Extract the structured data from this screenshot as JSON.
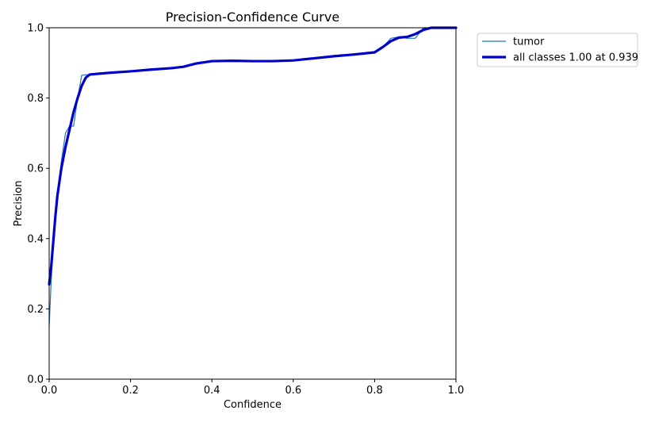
{
  "chart_data": {
    "type": "line",
    "title": "Precision-Confidence Curve",
    "xlabel": "Confidence",
    "ylabel": "Precision",
    "xlim": [
      0,
      1
    ],
    "ylim": [
      0,
      1
    ],
    "x_ticks": [
      0.0,
      0.2,
      0.4,
      0.6,
      0.8,
      1.0
    ],
    "y_ticks": [
      0.0,
      0.2,
      0.4,
      0.6,
      0.8,
      1.0
    ],
    "x_tick_labels": [
      "0.0",
      "0.2",
      "0.4",
      "0.6",
      "0.8",
      "1.0"
    ],
    "y_tick_labels": [
      "0.0",
      "0.2",
      "0.4",
      "0.6",
      "0.8",
      "1.0"
    ],
    "grid": false,
    "legend_position": "outside-top-right",
    "series": [
      {
        "name": "tumor",
        "color": "#1f77b4",
        "points": [
          [
            0.0,
            0.15
          ],
          [
            0.005,
            0.28
          ],
          [
            0.01,
            0.38
          ],
          [
            0.015,
            0.47
          ],
          [
            0.02,
            0.53
          ],
          [
            0.03,
            0.62
          ],
          [
            0.04,
            0.7
          ],
          [
            0.05,
            0.72
          ],
          [
            0.06,
            0.72
          ],
          [
            0.065,
            0.76
          ],
          [
            0.07,
            0.8
          ],
          [
            0.08,
            0.865
          ],
          [
            0.09,
            0.866
          ],
          [
            0.1,
            0.867
          ],
          [
            0.15,
            0.872
          ],
          [
            0.2,
            0.876
          ],
          [
            0.25,
            0.881
          ],
          [
            0.3,
            0.885
          ],
          [
            0.33,
            0.888
          ],
          [
            0.36,
            0.897
          ],
          [
            0.4,
            0.905
          ],
          [
            0.45,
            0.906
          ],
          [
            0.5,
            0.905
          ],
          [
            0.55,
            0.905
          ],
          [
            0.6,
            0.907
          ],
          [
            0.65,
            0.913
          ],
          [
            0.7,
            0.919
          ],
          [
            0.75,
            0.924
          ],
          [
            0.8,
            0.93
          ],
          [
            0.82,
            0.945
          ],
          [
            0.84,
            0.97
          ],
          [
            0.86,
            0.974
          ],
          [
            0.88,
            0.97
          ],
          [
            0.9,
            0.97
          ],
          [
            0.91,
            0.985
          ],
          [
            0.92,
            1.0
          ],
          [
            0.95,
            1.0
          ],
          [
            1.0,
            1.0
          ]
        ]
      },
      {
        "name": "all classes 1.00 at 0.939",
        "color": "#0000cd",
        "points": [
          [
            0.0,
            0.27
          ],
          [
            0.005,
            0.32
          ],
          [
            0.01,
            0.39
          ],
          [
            0.015,
            0.46
          ],
          [
            0.02,
            0.52
          ],
          [
            0.03,
            0.6
          ],
          [
            0.04,
            0.66
          ],
          [
            0.05,
            0.71
          ],
          [
            0.06,
            0.76
          ],
          [
            0.07,
            0.8
          ],
          [
            0.08,
            0.835
          ],
          [
            0.09,
            0.858
          ],
          [
            0.1,
            0.867
          ],
          [
            0.15,
            0.872
          ],
          [
            0.2,
            0.876
          ],
          [
            0.25,
            0.881
          ],
          [
            0.3,
            0.885
          ],
          [
            0.33,
            0.889
          ],
          [
            0.36,
            0.898
          ],
          [
            0.4,
            0.905
          ],
          [
            0.45,
            0.906
          ],
          [
            0.5,
            0.905
          ],
          [
            0.55,
            0.905
          ],
          [
            0.6,
            0.907
          ],
          [
            0.65,
            0.913
          ],
          [
            0.7,
            0.919
          ],
          [
            0.75,
            0.924
          ],
          [
            0.8,
            0.93
          ],
          [
            0.82,
            0.945
          ],
          [
            0.84,
            0.962
          ],
          [
            0.86,
            0.972
          ],
          [
            0.88,
            0.974
          ],
          [
            0.9,
            0.982
          ],
          [
            0.92,
            0.994
          ],
          [
            0.939,
            1.0
          ],
          [
            0.96,
            1.0
          ],
          [
            1.0,
            1.0
          ]
        ]
      }
    ]
  }
}
